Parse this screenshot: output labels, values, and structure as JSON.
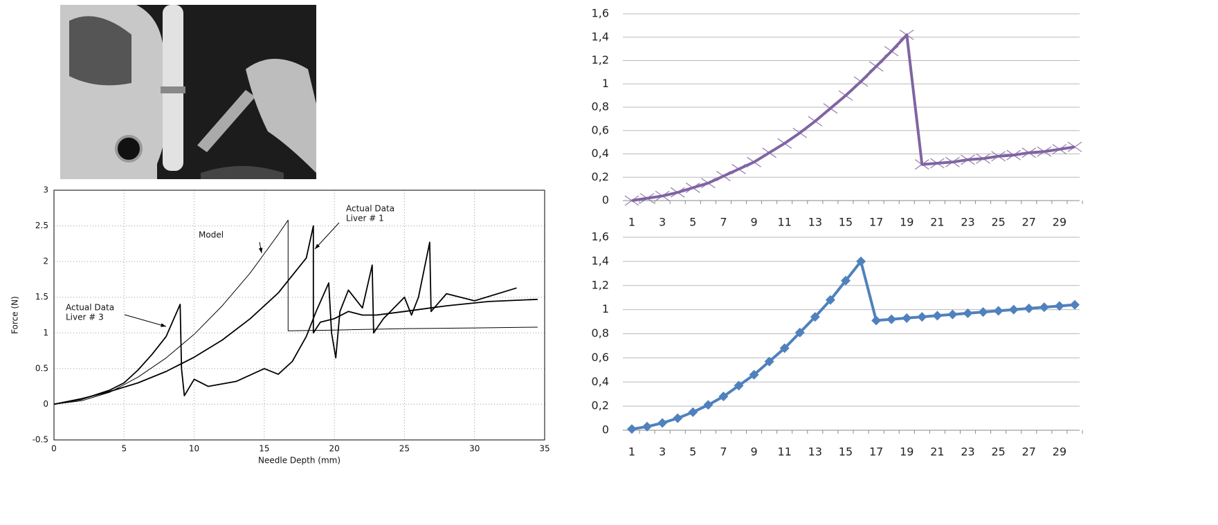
{
  "chart_data": [
    {
      "type": "line",
      "x_label": "Needle Depth (mm)",
      "y_label": "Force (N)",
      "xlim": [
        0,
        35
      ],
      "xticks": [
        0,
        5,
        10,
        15,
        20,
        25,
        30,
        35
      ],
      "ylim": [
        -0.5,
        3
      ],
      "yticks": [
        -0.5,
        0,
        0.5,
        1,
        1.5,
        2,
        2.5,
        3
      ],
      "grid": true,
      "annotations": [
        [
          "Model"
        ],
        [
          "Actual Data",
          "Liver # 1"
        ],
        [
          "Actual Data",
          "Liver # 3"
        ]
      ],
      "series": [
        {
          "color": "#000000",
          "x": [
            0,
            2,
            4,
            6,
            8,
            10,
            12,
            14,
            16,
            16.7,
            16.7,
            20,
            25,
            30,
            34.5
          ],
          "values": [
            0,
            0.05,
            0.17,
            0.38,
            0.65,
            0.98,
            1.38,
            1.84,
            2.38,
            2.58,
            1.03,
            1.04,
            1.06,
            1.07,
            1.08
          ]
        },
        {
          "color": "#000000",
          "x": [
            0,
            2,
            4,
            6,
            8,
            10,
            12,
            14,
            16,
            18,
            18.5,
            18.5,
            19,
            20,
            21,
            22,
            23,
            25,
            28,
            31,
            34.5
          ],
          "values": [
            0,
            0.08,
            0.18,
            0.3,
            0.46,
            0.66,
            0.9,
            1.2,
            1.56,
            2.05,
            2.5,
            1.0,
            1.15,
            1.2,
            1.3,
            1.25,
            1.25,
            1.3,
            1.38,
            1.44,
            1.47
          ]
        },
        {
          "color": "#000000",
          "x": [
            0,
            2,
            4,
            5,
            6,
            7,
            8,
            9,
            9.1,
            9.3,
            10,
            11,
            13,
            15,
            16,
            17,
            18,
            18.7,
            19.6,
            19.8,
            20.1,
            20.4,
            21,
            22,
            22.7,
            22.8,
            23.5,
            25,
            25.5,
            26,
            26.8,
            26.9,
            28,
            30,
            33
          ],
          "values": [
            0,
            0.07,
            0.2,
            0.3,
            0.48,
            0.7,
            0.95,
            1.4,
            0.5,
            0.12,
            0.35,
            0.25,
            0.32,
            0.5,
            0.42,
            0.6,
            0.95,
            1.3,
            1.7,
            1.0,
            0.65,
            1.3,
            1.6,
            1.35,
            1.95,
            1.0,
            1.2,
            1.5,
            1.25,
            1.5,
            2.27,
            1.3,
            1.55,
            1.45,
            1.63
          ]
        }
      ]
    },
    {
      "type": "line",
      "marker": "x",
      "grid": true,
      "categories": [
        1,
        null,
        3,
        null,
        5,
        null,
        7,
        null,
        9,
        null,
        11,
        null,
        13,
        null,
        15,
        null,
        17,
        null,
        19,
        null,
        21,
        null,
        23,
        null,
        25,
        null,
        27,
        null,
        29,
        null
      ],
      "ylim": [
        0,
        1.6
      ],
      "yticks": [
        0,
        {
          "value": 0.2,
          "label": "0,2"
        },
        {
          "value": 0.4,
          "label": "0,4"
        },
        {
          "value": 0.6,
          "label": "0,6"
        },
        {
          "value": 0.8,
          "label": "0,8"
        },
        1,
        {
          "value": 1.2,
          "label": "1,2"
        },
        {
          "value": 1.4,
          "label": "1,4"
        },
        {
          "value": 1.6,
          "label": "1,6"
        }
      ],
      "series": [
        {
          "color": "#8064a2",
          "values": [
            0,
            0.02,
            0.04,
            0.07,
            0.11,
            0.15,
            0.21,
            0.27,
            0.33,
            0.41,
            0.49,
            0.58,
            0.68,
            0.79,
            0.9,
            1.02,
            1.15,
            1.28,
            1.42,
            0.31,
            0.32,
            0.33,
            0.35,
            0.36,
            0.38,
            0.39,
            0.41,
            0.42,
            0.44,
            0.46
          ]
        }
      ]
    },
    {
      "type": "line",
      "marker": "diamond",
      "grid": true,
      "categories": [
        1,
        null,
        3,
        null,
        5,
        null,
        7,
        null,
        9,
        null,
        11,
        null,
        13,
        null,
        15,
        null,
        17,
        null,
        19,
        null,
        21,
        null,
        23,
        null,
        25,
        null,
        27,
        null,
        29,
        null
      ],
      "ylim": [
        0,
        1.6
      ],
      "yticks": [
        0,
        {
          "value": 0.2,
          "label": "0,2"
        },
        {
          "value": 0.4,
          "label": "0,4"
        },
        {
          "value": 0.6,
          "label": "0,6"
        },
        {
          "value": 0.8,
          "label": "0,8"
        },
        1,
        {
          "value": 1.2,
          "label": "1,2"
        },
        {
          "value": 1.4,
          "label": "1,4"
        },
        {
          "value": 1.6,
          "label": "1,6"
        }
      ],
      "series": [
        {
          "color": "#4f81bd",
          "values": [
            0.01,
            0.03,
            0.06,
            0.1,
            0.15,
            0.21,
            0.28,
            0.37,
            0.46,
            0.57,
            0.68,
            0.81,
            0.94,
            1.08,
            1.24,
            1.4,
            0.91,
            0.92,
            0.93,
            0.94,
            0.95,
            0.96,
            0.97,
            0.98,
            0.99,
            1.0,
            1.01,
            1.02,
            1.03,
            1.04
          ]
        }
      ]
    }
  ]
}
